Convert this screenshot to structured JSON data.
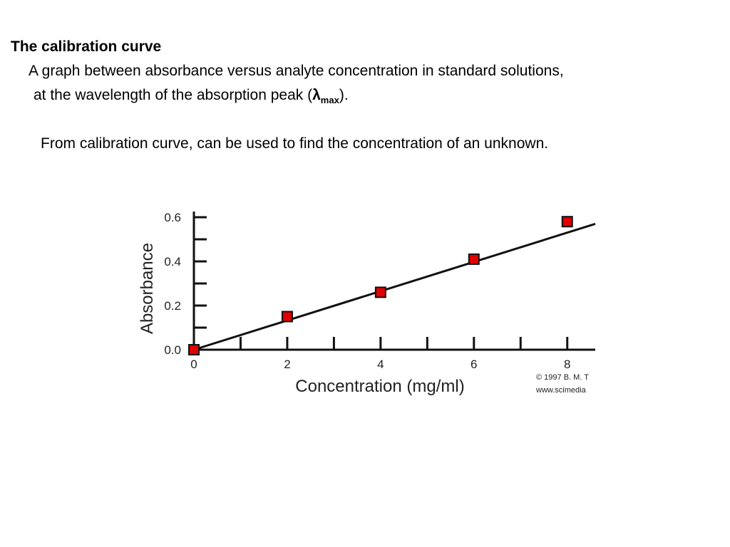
{
  "heading": "The calibration curve",
  "definition": {
    "line1": "A graph between absorbance versus analyte concentration in standard solutions,",
    "line2_start": "at the wavelength of the absorption peak (",
    "symbol": "λ",
    "subscript": "max",
    "line2_end": ")."
  },
  "note": "From calibration curve, can be used to find the concentration of an unknown.",
  "chart_data": {
    "type": "scatter",
    "x_label": "Concentration (mg/ml)",
    "y_label": "Absorbance",
    "x": [
      0,
      2,
      4,
      6,
      8
    ],
    "values": [
      0,
      0.15,
      0.26,
      0.41,
      0.58
    ],
    "color": "#e00000",
    "fit": {
      "x": [
        0,
        8.6
      ],
      "values": [
        0,
        0.57
      ]
    },
    "xlim": [
      0,
      8.6
    ],
    "ylim": [
      0,
      0.6
    ],
    "xticks": [
      0,
      2,
      4,
      6,
      8
    ],
    "xminorticks": [
      1,
      3,
      5,
      7
    ],
    "yticks": [
      {
        "value": 0,
        "label": "0.0"
      },
      0.2,
      0.4,
      0.6
    ],
    "yminorticks": [
      0.1,
      0.3,
      0.5
    ],
    "annotations": [
      "© 1997 B. M. T",
      "www.scimedia"
    ]
  }
}
